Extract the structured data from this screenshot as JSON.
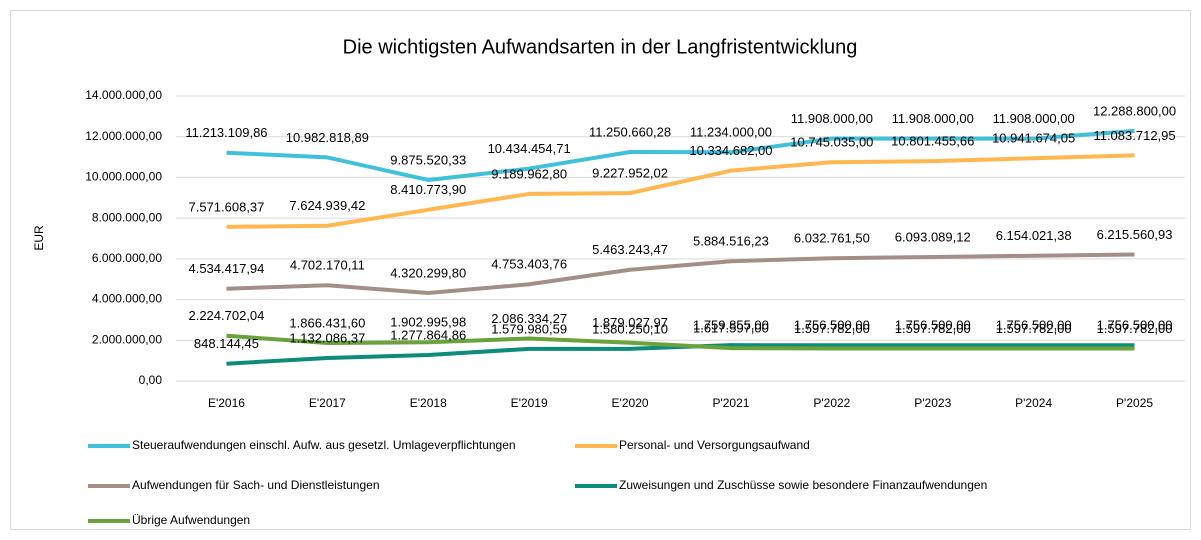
{
  "chart_data": {
    "type": "line",
    "title": "Die wichtigsten Aufwandsarten in der Langfristentwicklung",
    "y_label": "EUR",
    "categories": [
      "E'2016",
      "E'2017",
      "E'2018",
      "E'2019",
      "E'2020",
      "P'2021",
      "P'2022",
      "P'2023",
      "P'2024",
      "P'2025"
    ],
    "ylim": [
      0,
      14000000
    ],
    "yticks": [
      {
        "value": 0,
        "label": "0,00"
      },
      {
        "value": 2000000,
        "label": "2.000.000,00"
      },
      {
        "value": 4000000,
        "label": "4.000.000,00"
      },
      {
        "value": 6000000,
        "label": "6.000.000,00"
      },
      {
        "value": 8000000,
        "label": "8.000.000,00"
      },
      {
        "value": 10000000,
        "label": "10.000.000,00"
      },
      {
        "value": 12000000,
        "label": "12.000.000,00"
      },
      {
        "value": 14000000,
        "label": "14.000.000,00"
      }
    ],
    "grid": true,
    "legend": "bottom",
    "series": [
      {
        "name": "Steueraufwendungen einschl. Aufw. aus gesetzl. Umlageverpflichtungen",
        "color": "#41c0d9",
        "values": [
          11213109.86,
          10982818.89,
          9875520.33,
          10434454.71,
          11250660.28,
          11234000.0,
          11908000.0,
          11908000.0,
          11908000.0,
          12288800.0
        ],
        "value_labels": [
          "11.213.109,86",
          "10.982.818,89",
          "9.875.520,33",
          "10.434.454,71",
          "11.250.660,28",
          "11.234.000,00",
          "11.908.000,00",
          "11.908.000,00",
          "11.908.000,00",
          "12.288.800,00"
        ]
      },
      {
        "name": "Personal- und Versorgungsaufwand",
        "color": "#ffb851",
        "values": [
          7571608.37,
          7624939.42,
          8410773.9,
          9189962.8,
          9227952.02,
          10334682.0,
          10745035.0,
          10801455.66,
          10941674.05,
          11083712.95
        ],
        "value_labels": [
          "7.571.608,37",
          "7.624.939,42",
          "8.410.773,90",
          "9.189.962,80",
          "9.227.952,02",
          "10.334.682,00",
          "10.745.035,00",
          "10.801.455,66",
          "10.941.674,05",
          "11.083.712,95"
        ]
      },
      {
        "name": "Aufwendungen für Sach- und Dienstleistungen",
        "color": "#a38f87",
        "values": [
          4534417.94,
          4702170.11,
          4320299.8,
          4753403.76,
          5463243.47,
          5884516.23,
          6032761.5,
          6093089.12,
          6154021.38,
          6215560.93
        ],
        "value_labels": [
          "4.534.417,94",
          "4.702.170,11",
          "4.320.299,80",
          "4.753.403,76",
          "5.463.243,47",
          "5.884.516,23",
          "6.032.761,50",
          "6.093.089,12",
          "6.154.021,38",
          "6.215.560,93"
        ]
      },
      {
        "name": "Zuweisungen und Zuschüsse sowie besondere Finanzaufwendungen",
        "color": "#0e8c7a",
        "values": [
          848144.45,
          1132086.37,
          1277864.86,
          1579980.59,
          1580250.1,
          1759855.0,
          1756500.0,
          1756500.0,
          1756500.0,
          1756500.0
        ],
        "value_labels": [
          "848.144,45",
          "1.132.086,37",
          "1.277.864,86",
          "1.579.980,59",
          "1.580.250,10",
          "1.759.855,00",
          "1.756.500,00",
          "1.756.500,00",
          "1.756.500,00",
          "1.756.500,00"
        ]
      },
      {
        "name": "Übrige Aufwendungen",
        "color": "#6aa33b",
        "values": [
          2224702.04,
          1866431.6,
          1902995.98,
          2086334.27,
          1879027.97,
          1617597.0,
          1597782.0,
          1597782.0,
          1597782.0,
          1597782.0
        ],
        "value_labels": [
          "2.224.702,04",
          "1.866.431,60",
          "1.902.995,98",
          "2.086.334,27",
          "1.879.027,97",
          "1.617.597,00",
          "1.597.782,00",
          "1.597.782,00",
          "1.597.782,00",
          "1.597.782,00"
        ]
      }
    ]
  }
}
